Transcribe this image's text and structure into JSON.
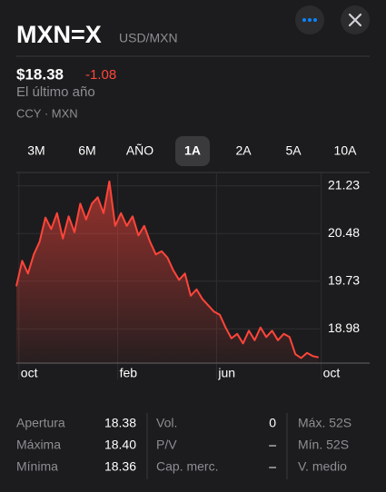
{
  "header": {
    "symbol": "MXN=X",
    "pair": "USD/MXN"
  },
  "quote": {
    "price": "$18.38",
    "change": "-1.08",
    "period": "El último año",
    "exchange": "CCY · MXN"
  },
  "tabs": [
    "3M",
    "6M",
    "AÑO",
    "1A",
    "2A",
    "5A",
    "10A"
  ],
  "selected_tab": 3,
  "chart_data": {
    "type": "line",
    "categories": [
      null,
      null,
      "oct",
      null,
      null,
      null,
      null,
      null,
      null,
      null,
      null,
      null,
      null,
      null,
      null,
      null,
      null,
      null,
      null,
      "feb",
      null,
      null,
      null,
      null,
      null,
      null,
      null,
      null,
      null,
      null,
      null,
      null,
      null,
      null,
      null,
      null,
      "jun",
      null,
      null,
      null,
      null,
      null,
      null,
      null,
      null,
      null,
      null,
      null,
      null,
      null,
      null,
      null,
      null,
      null,
      "oct"
    ],
    "series": [
      {
        "name": "USD/MXN",
        "color": "#ff453a",
        "values": [
          19.65,
          20.05,
          19.85,
          20.15,
          20.35,
          20.73,
          20.55,
          20.8,
          20.4,
          20.75,
          20.5,
          20.95,
          20.7,
          20.95,
          21.05,
          20.8,
          21.3,
          20.6,
          20.8,
          20.6,
          20.75,
          20.45,
          20.6,
          20.35,
          20.15,
          20.2,
          20.1,
          19.9,
          19.75,
          19.85,
          19.5,
          19.6,
          19.45,
          19.35,
          19.25,
          19.2,
          19.0,
          18.83,
          18.9,
          18.75,
          18.95,
          18.8,
          19.0,
          18.85,
          18.95,
          18.8,
          18.9,
          18.85,
          18.58,
          18.52,
          18.6,
          18.55,
          18.53,
          null,
          null
        ]
      }
    ],
    "ylim": [
      18.44,
      21.44
    ],
    "yticks": [
      21.23,
      20.48,
      19.73,
      18.98
    ],
    "grid": true
  },
  "stats": [
    [
      {
        "label": "Apertura",
        "value": "18.38"
      },
      {
        "label": "Máxima",
        "value": "18.40"
      },
      {
        "label": "Mínima",
        "value": "18.36"
      }
    ],
    [
      {
        "label": "Vol.",
        "value": "0"
      },
      {
        "label": "P/V",
        "value": "–"
      },
      {
        "label": "Cap. merc.",
        "value": "–"
      }
    ],
    [
      {
        "label": "Máx. 52S"
      },
      {
        "label": "Mín. 52S"
      },
      {
        "label": "V. medio"
      }
    ]
  ]
}
